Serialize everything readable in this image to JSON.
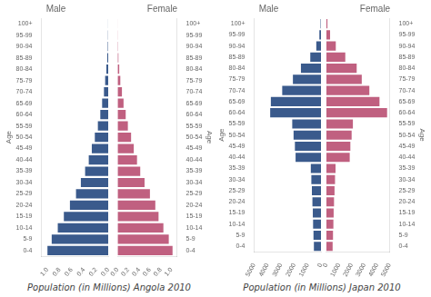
{
  "chart_data": [
    {
      "type": "bar",
      "orientation": "horizontal",
      "categories": [
        "0-4",
        "5-9",
        "10-14",
        "15-19",
        "20-24",
        "25-29",
        "30-34",
        "35-39",
        "40-44",
        "45-49",
        "50-54",
        "55-59",
        "60-64",
        "65-69",
        "70-74",
        "75-79",
        "80-84",
        "85-89",
        "90-94",
        "95-99",
        "100+"
      ],
      "series": [
        {
          "name": "Male",
          "color": "#3a5a8c",
          "values": [
            1.0,
            0.93,
            0.83,
            0.73,
            0.63,
            0.53,
            0.45,
            0.38,
            0.32,
            0.27,
            0.22,
            0.17,
            0.13,
            0.1,
            0.07,
            0.05,
            0.03,
            0.015,
            0.007,
            0.003,
            0.001
          ]
        },
        {
          "name": "Female",
          "color": "#c06080",
          "values": [
            1.02,
            0.95,
            0.85,
            0.76,
            0.7,
            0.6,
            0.5,
            0.42,
            0.36,
            0.3,
            0.25,
            0.19,
            0.15,
            0.11,
            0.08,
            0.05,
            0.03,
            0.015,
            0.007,
            0.003,
            0.001
          ]
        }
      ],
      "xlabel": "Population (in Millions) Angola 2010",
      "ylabel": "Age",
      "xlim": [
        0,
        1.1
      ],
      "xticks": [
        {
          "value": 0,
          "label": "0.0"
        },
        0.2,
        0.4,
        0.6,
        0.8,
        {
          "value": 1,
          "label": "1.0"
        }
      ],
      "grid": false
    },
    {
      "type": "bar",
      "orientation": "horizontal",
      "categories": [
        "0-4",
        "5-9",
        "10-14",
        "15-19",
        "20-24",
        "25-29",
        "30-34",
        "35-39",
        "40-44",
        "45-49",
        "50-54",
        "55-59",
        "60-64",
        "65-69",
        "70-74",
        "75-79",
        "80-84",
        "85-89",
        "90-94",
        "95-99",
        "100+"
      ],
      "series": [
        {
          "name": "Male",
          "color": "#3a5a8c",
          "values": [
            530,
            560,
            590,
            610,
            640,
            680,
            720,
            760,
            1900,
            1950,
            2050,
            2150,
            3800,
            3750,
            2900,
            2100,
            1500,
            800,
            350,
            120,
            30
          ]
        },
        {
          "name": "Female",
          "color": "#c06080",
          "values": [
            500,
            530,
            560,
            580,
            610,
            650,
            690,
            730,
            1850,
            1900,
            2000,
            2100,
            4800,
            4200,
            3400,
            2800,
            2400,
            1500,
            750,
            300,
            90
          ]
        }
      ],
      "xlabel": "Population (in Millions) Japan 2010",
      "ylabel": "Age",
      "xlim": [
        0,
        5000
      ],
      "xticks": [
        0,
        1000,
        2000,
        3000,
        4000,
        5000
      ],
      "grid": false
    }
  ]
}
